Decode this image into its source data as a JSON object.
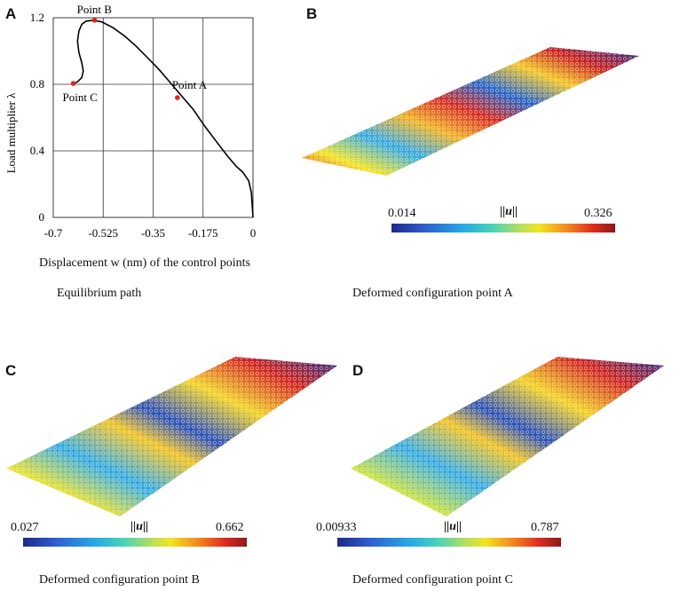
{
  "panels": {
    "a": {
      "letter": "A",
      "caption": "Equilibrium path"
    },
    "b": {
      "letter": "B",
      "caption": "Deformed configuration point A",
      "colorbar": {
        "min": "0.014",
        "max": "0.326",
        "title": "||u||"
      }
    },
    "c": {
      "letter": "C",
      "caption": "Deformed configuration point B",
      "colorbar": {
        "min": "0.027",
        "max": "0.662",
        "title": "||u||"
      }
    },
    "d": {
      "letter": "D",
      "caption": "Deformed configuration point C",
      "colorbar": {
        "min": "0.00933",
        "max": "0.787",
        "title": "||u||"
      }
    }
  },
  "chart_data": {
    "type": "line",
    "title": "",
    "xlabel": "Displacement w (nm) of the control points",
    "ylabel": "Load multiplier λ",
    "xlim": [
      -0.7,
      0
    ],
    "ylim": [
      0,
      1.2
    ],
    "x_ticks": [
      "-0.7",
      "-0.525",
      "-0.35",
      "-0.175",
      "0"
    ],
    "y_ticks": [
      "0",
      "0.4",
      "0.8",
      "1.2"
    ],
    "grid": true,
    "series": [
      {
        "name": "Equilibrium path",
        "x": [
          0,
          -0.002,
          -0.006,
          -0.015,
          -0.035,
          -0.06,
          -0.09,
          -0.13,
          -0.17,
          -0.21,
          -0.25,
          -0.29,
          -0.33,
          -0.37,
          -0.41,
          -0.45,
          -0.49,
          -0.53,
          -0.56,
          -0.585,
          -0.6,
          -0.61,
          -0.615,
          -0.61,
          -0.6,
          -0.595,
          -0.6,
          -0.615,
          -0.63
        ],
        "y": [
          0.0,
          0.05,
          0.15,
          0.22,
          0.27,
          0.31,
          0.37,
          0.46,
          0.55,
          0.65,
          0.73,
          0.81,
          0.89,
          0.96,
          1.03,
          1.09,
          1.14,
          1.175,
          1.185,
          1.18,
          1.16,
          1.12,
          1.06,
          0.99,
          0.93,
          0.88,
          0.84,
          0.815,
          0.805
        ]
      }
    ],
    "points": [
      {
        "label": "Point A",
        "x": -0.265,
        "y": 0.72
      },
      {
        "label": "Point B",
        "x": -0.555,
        "y": 1.185
      },
      {
        "label": "Point C",
        "x": -0.63,
        "y": 0.805
      }
    ]
  }
}
